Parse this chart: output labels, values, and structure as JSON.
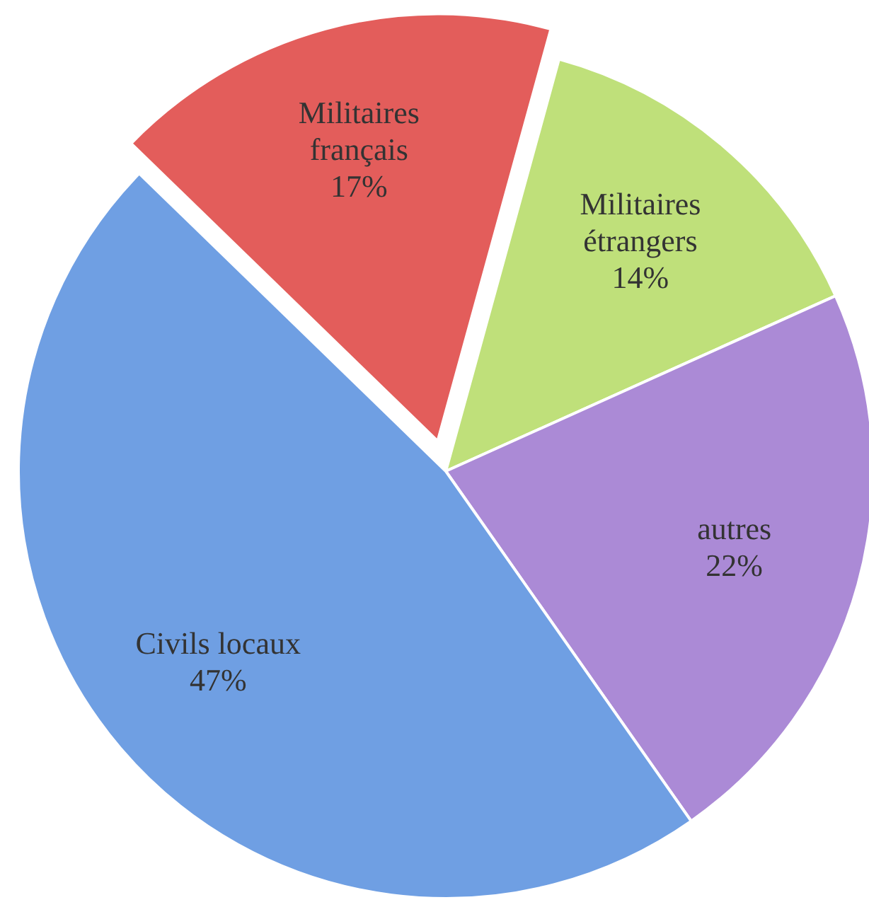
{
  "chart_data": {
    "type": "pie",
    "categories": [
      "Militaires français",
      "Militaires étrangers",
      "autres",
      "Civils locaux"
    ],
    "values": [
      17,
      14,
      22,
      47
    ],
    "value_labels": [
      "17%",
      "14%",
      "22%",
      "47%"
    ],
    "colors": [
      "#e35d5b",
      "#bfe07a",
      "#ab8ad6",
      "#6f9fe3"
    ]
  }
}
